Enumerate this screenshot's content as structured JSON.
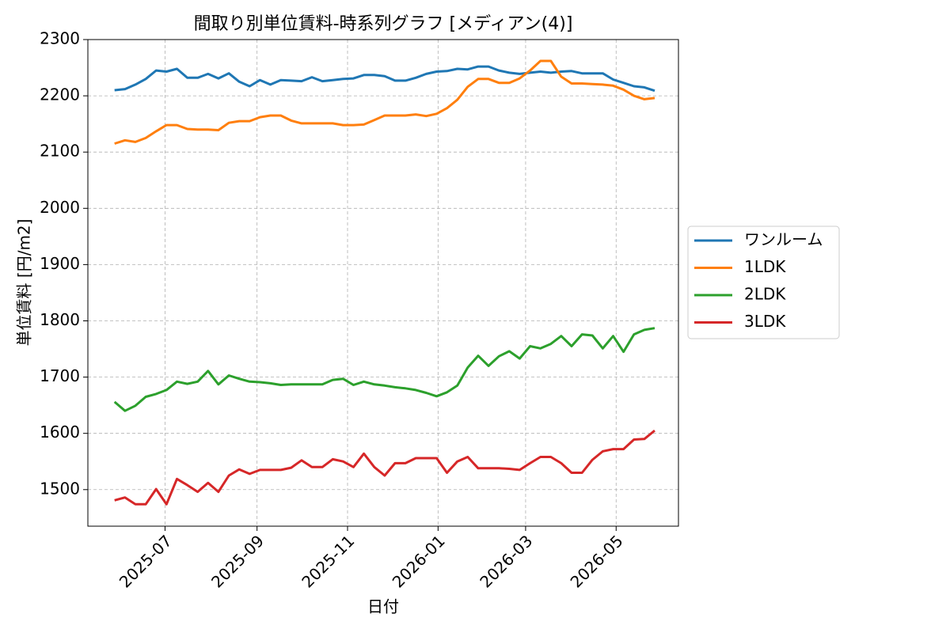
{
  "chart_data": {
    "type": "line",
    "title": "間取り別単位賃料-時系列グラフ [メディアン(4)]",
    "x_label": "日付",
    "y_label": "単位賃料 [円/m2]",
    "x": [
      "2025-05-28",
      "2025-06-04",
      "2025-06-11",
      "2025-06-18",
      "2025-06-25",
      "2025-07-02",
      "2025-07-09",
      "2025-07-16",
      "2025-07-23",
      "2025-07-30",
      "2025-08-06",
      "2025-08-13",
      "2025-08-20",
      "2025-08-27",
      "2025-09-03",
      "2025-09-10",
      "2025-09-17",
      "2025-09-24",
      "2025-10-01",
      "2025-10-08",
      "2025-10-15",
      "2025-10-22",
      "2025-10-29",
      "2025-11-05",
      "2025-11-12",
      "2025-11-19",
      "2025-11-26",
      "2025-12-03",
      "2025-12-10",
      "2025-12-17",
      "2025-12-24",
      "2025-12-31",
      "2026-01-07",
      "2026-01-14",
      "2026-01-21",
      "2026-01-28",
      "2026-02-04",
      "2026-02-11",
      "2026-02-18",
      "2026-02-25",
      "2026-03-04",
      "2026-03-11",
      "2026-03-18",
      "2026-03-25",
      "2026-04-01",
      "2026-04-08",
      "2026-04-15",
      "2026-04-22",
      "2026-04-29",
      "2026-05-06",
      "2026-05-13",
      "2026-05-20",
      "2026-05-27"
    ],
    "series": [
      {
        "name": "ワンルーム",
        "color": "#1f77b4",
        "values": [
          2210,
          2212,
          2220,
          2230,
          2245,
          2243,
          2248,
          2232,
          2232,
          2239,
          2231,
          2240,
          2225,
          2217,
          2228,
          2220,
          2228,
          2227,
          2226,
          2233,
          2226,
          2228,
          2230,
          2231,
          2237,
          2237,
          2235,
          2227,
          2227,
          2232,
          2239,
          2243,
          2244,
          2248,
          2247,
          2252,
          2252,
          2245,
          2241,
          2239,
          2241,
          2243,
          2241,
          2243,
          2244,
          2240,
          2240,
          2240,
          2229,
          2223,
          2217,
          2215,
          2209
        ]
      },
      {
        "name": "1LDK",
        "color": "#ff7f0e",
        "values": [
          2115,
          2121,
          2118,
          2125,
          2137,
          2148,
          2148,
          2141,
          2140,
          2140,
          2139,
          2152,
          2155,
          2155,
          2162,
          2165,
          2165,
          2156,
          2151,
          2151,
          2151,
          2151,
          2148,
          2148,
          2149,
          2157,
          2165,
          2165,
          2165,
          2167,
          2164,
          2168,
          2178,
          2193,
          2216,
          2230,
          2230,
          2223,
          2223,
          2231,
          2245,
          2262,
          2262,
          2234,
          2222,
          2222,
          2221,
          2220,
          2218,
          2211,
          2200,
          2194,
          2196
        ]
      },
      {
        "name": "2LDK",
        "color": "#2ca02c",
        "values": [
          1656,
          1640,
          1649,
          1665,
          1670,
          1677,
          1692,
          1688,
          1692,
          1711,
          1687,
          1703,
          1697,
          1692,
          1691,
          1689,
          1686,
          1687,
          1687,
          1687,
          1687,
          1695,
          1697,
          1686,
          1692,
          1687,
          1685,
          1682,
          1680,
          1677,
          1672,
          1666,
          1673,
          1685,
          1717,
          1738,
          1720,
          1737,
          1746,
          1733,
          1755,
          1751,
          1759,
          1773,
          1755,
          1776,
          1774,
          1751,
          1773,
          1745,
          1776,
          1784,
          1787
        ]
      },
      {
        "name": "3LDK",
        "color": "#d62728",
        "values": [
          1481,
          1486,
          1474,
          1474,
          1501,
          1474,
          1519,
          1508,
          1496,
          1512,
          1496,
          1525,
          1536,
          1528,
          1535,
          1535,
          1535,
          1539,
          1552,
          1540,
          1540,
          1554,
          1550,
          1540,
          1564,
          1540,
          1525,
          1547,
          1547,
          1556,
          1556,
          1556,
          1530,
          1550,
          1558,
          1538,
          1538,
          1538,
          1537,
          1535,
          1547,
          1558,
          1558,
          1547,
          1530,
          1530,
          1553,
          1568,
          1572,
          1572,
          1589,
          1590,
          1605
        ]
      }
    ],
    "xlim": [
      "2025-05-10",
      "2026-06-12"
    ],
    "xticks": [
      {
        "value": "2025-07-01",
        "label": "2025-07"
      },
      {
        "value": "2025-09-01",
        "label": "2025-09"
      },
      {
        "value": "2025-11-01",
        "label": "2025-11"
      },
      {
        "value": "2026-01-01",
        "label": "2026-01"
      },
      {
        "value": "2026-03-01",
        "label": "2026-03"
      },
      {
        "value": "2026-05-01",
        "label": "2026-05"
      }
    ],
    "ylim": [
      1435,
      2300
    ],
    "yticks": [
      1500,
      1600,
      1700,
      1800,
      1900,
      2000,
      2100,
      2200,
      2300
    ],
    "grid": true,
    "legend": "outside right"
  }
}
